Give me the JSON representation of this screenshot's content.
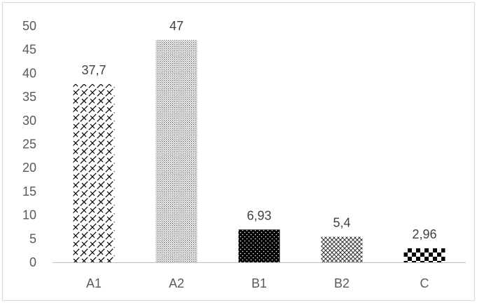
{
  "chart_data": {
    "type": "bar",
    "categories": [
      "A1",
      "A2",
      "B1",
      "B2",
      "C"
    ],
    "values": [
      37.7,
      47,
      6.93,
      5.4,
      2.96
    ],
    "data_labels": [
      "37,7",
      "47",
      "6,93",
      "5,4",
      "2,96"
    ],
    "patterns": [
      "diagonal-weave",
      "fine-dots",
      "white-dots-on-black",
      "crosshatch",
      "checkerboard"
    ],
    "title": "",
    "xlabel": "",
    "ylabel": "",
    "ylim": [
      0,
      50
    ],
    "yticks": [
      0,
      5,
      10,
      15,
      20,
      25,
      30,
      35,
      40,
      45,
      50
    ],
    "grid": false,
    "legend": "none",
    "colors": {
      "bar_ink": "#000000",
      "axis": "#bfbfbf",
      "tick_text": "#595959",
      "label_text": "#404040"
    }
  }
}
